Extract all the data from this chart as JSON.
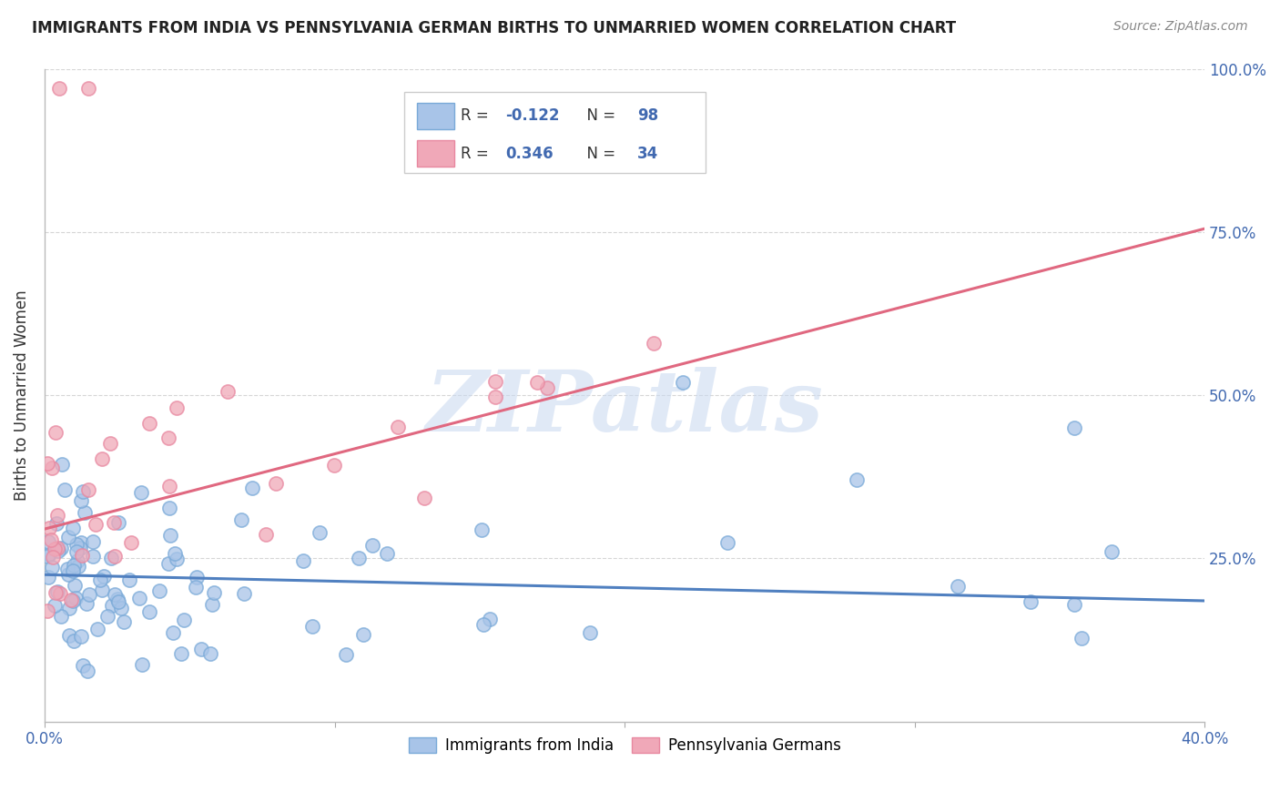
{
  "title": "IMMIGRANTS FROM INDIA VS PENNSYLVANIA GERMAN BIRTHS TO UNMARRIED WOMEN CORRELATION CHART",
  "source": "Source: ZipAtlas.com",
  "ylabel": "Births to Unmarried Women",
  "xlim": [
    0.0,
    0.4
  ],
  "ylim": [
    0.0,
    1.0
  ],
  "blue_R": -0.122,
  "blue_N": 98,
  "pink_R": 0.346,
  "pink_N": 34,
  "blue_color": "#a8c4e8",
  "pink_color": "#f0a8b8",
  "blue_line_color": "#5080c0",
  "pink_line_color": "#e06880",
  "blue_edge_color": "#7aaad8",
  "pink_edge_color": "#e888a0",
  "legend_label_blue": "Immigrants from India",
  "legend_label_pink": "Pennsylvania Germans",
  "watermark": "ZIPatlas",
  "blue_trend_x0": 0.0,
  "blue_trend_x1": 0.4,
  "blue_trend_y0": 0.225,
  "blue_trend_y1": 0.185,
  "pink_trend_x0": 0.0,
  "pink_trend_x1": 0.4,
  "pink_trend_y0": 0.295,
  "pink_trend_y1": 0.755
}
